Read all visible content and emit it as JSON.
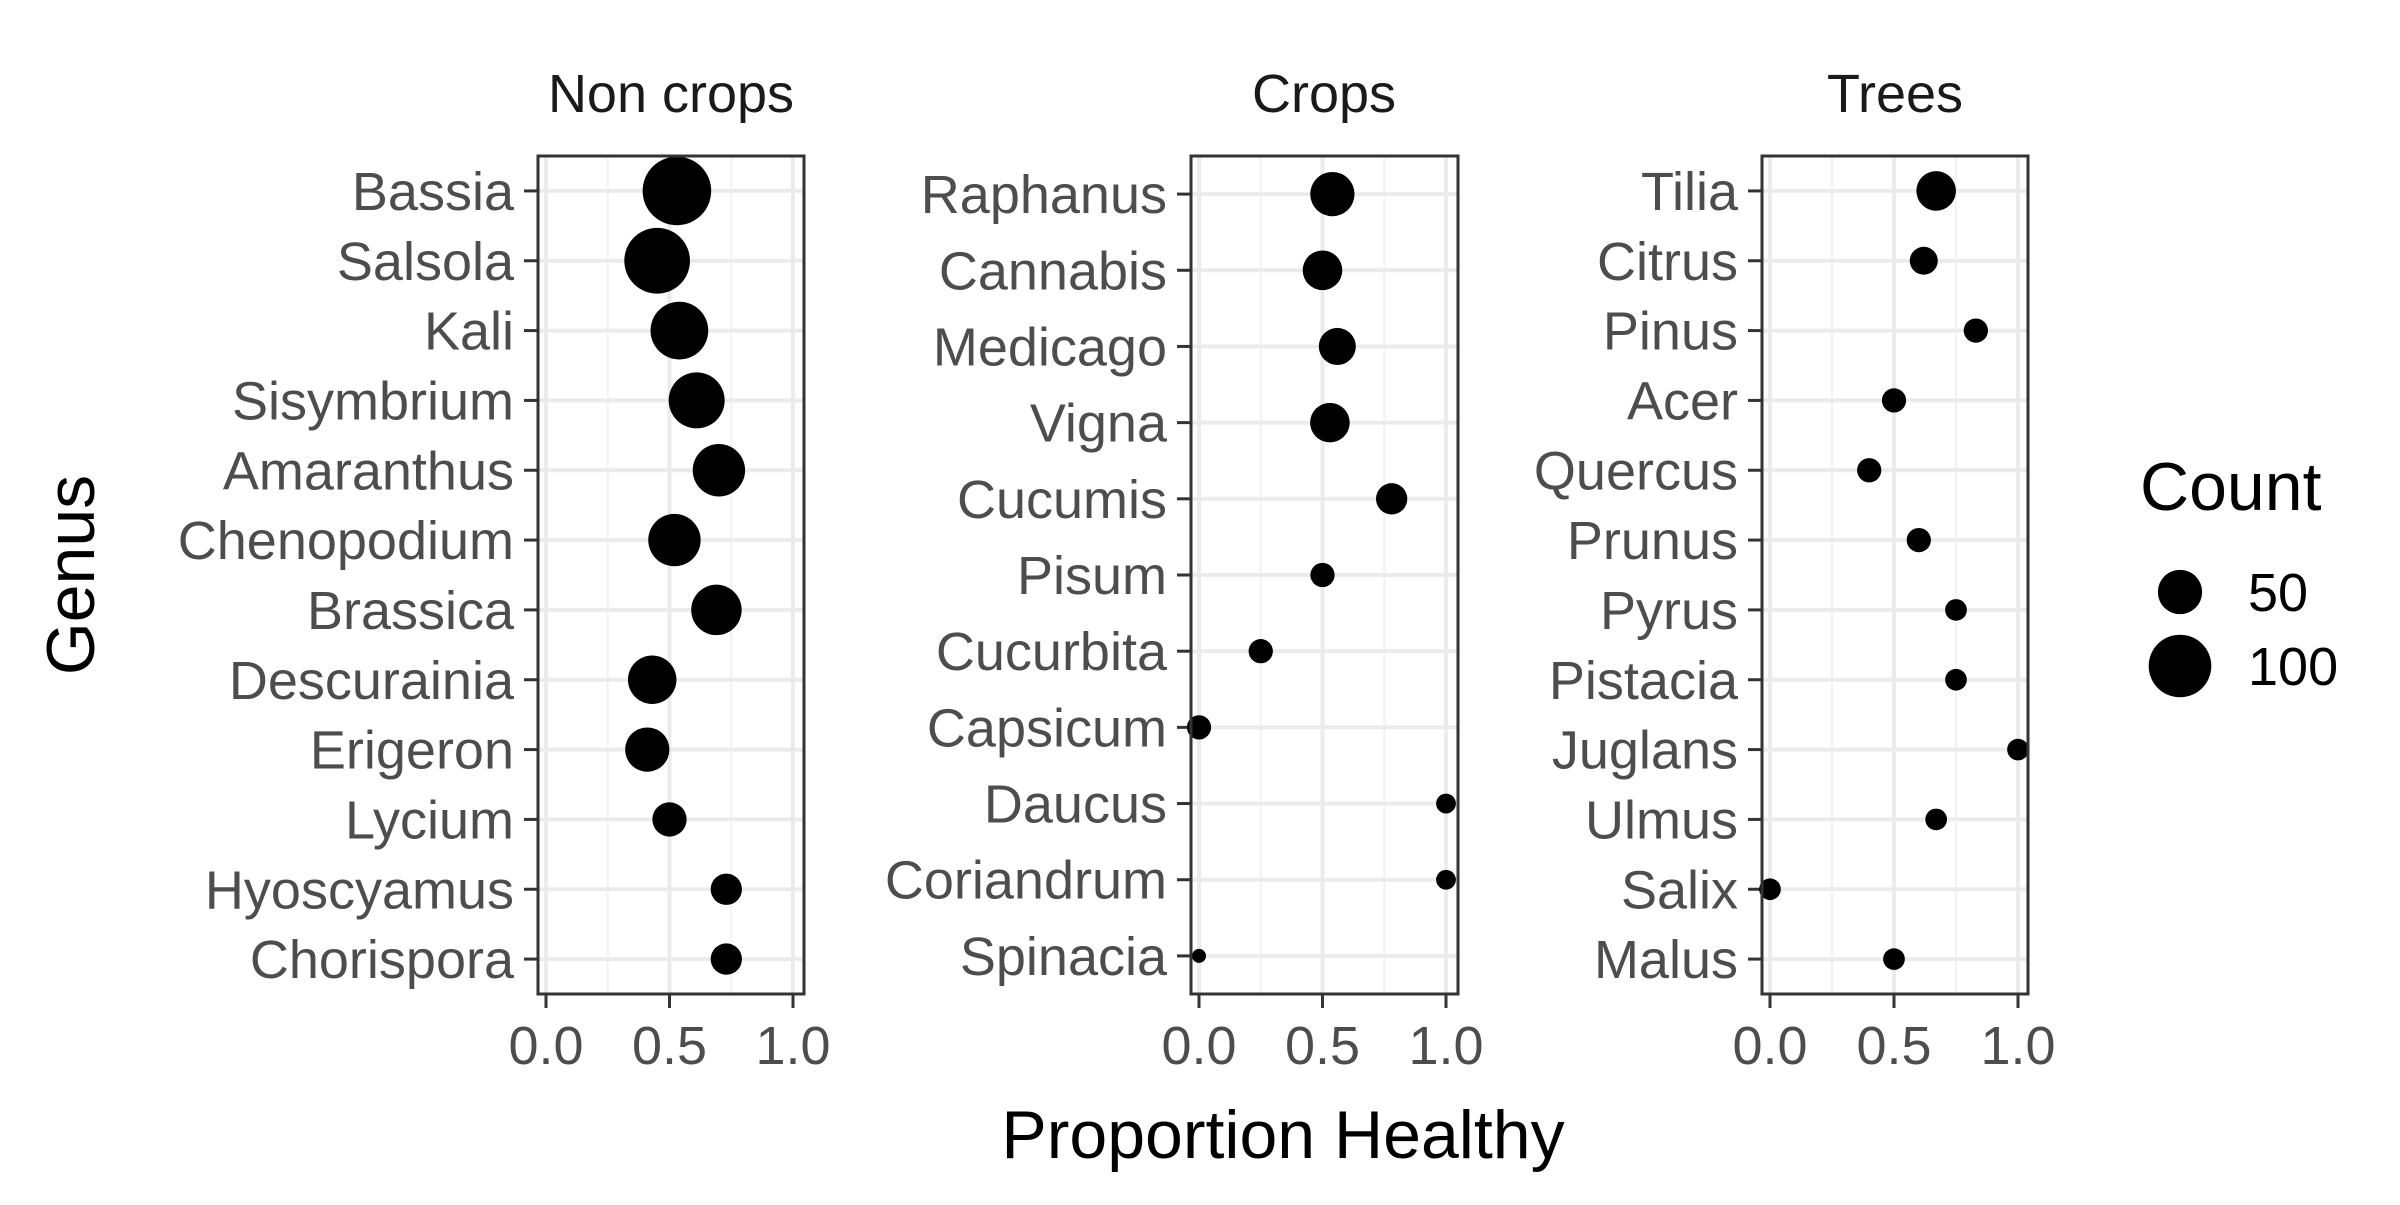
{
  "chart_data": {
    "type": "scatter",
    "xlabel": "Proportion Healthy",
    "ylabel": "Genus",
    "xlim": [
      0,
      1
    ],
    "x_ticks": [
      0.0,
      0.5,
      1.0
    ],
    "x_tick_labels": [
      "0.0",
      "0.5",
      "1.0"
    ],
    "grid": true,
    "legend": {
      "title": "Count",
      "placement": "right",
      "entries": [
        {
          "label": "50",
          "size": 50
        },
        {
          "label": "100",
          "size": 100
        }
      ]
    },
    "facets": [
      {
        "title": "Non crops",
        "points": [
          {
            "genus": "Bassia",
            "x": 0.53,
            "count": 120
          },
          {
            "genus": "Salsola",
            "x": 0.45,
            "count": 110
          },
          {
            "genus": "Kali",
            "x": 0.54,
            "count": 85
          },
          {
            "genus": "Sisymbrium",
            "x": 0.61,
            "count": 80
          },
          {
            "genus": "Amaranthus",
            "x": 0.7,
            "count": 70
          },
          {
            "genus": "Chenopodium",
            "x": 0.52,
            "count": 70
          },
          {
            "genus": "Brassica",
            "x": 0.69,
            "count": 65
          },
          {
            "genus": "Descurainia",
            "x": 0.43,
            "count": 60
          },
          {
            "genus": "Erigeron",
            "x": 0.41,
            "count": 50
          },
          {
            "genus": "Lycium",
            "x": 0.5,
            "count": 30
          },
          {
            "genus": "Hyoscyamus",
            "x": 0.73,
            "count": 25
          },
          {
            "genus": "Chorispora",
            "x": 0.73,
            "count": 25
          }
        ]
      },
      {
        "title": "Crops",
        "points": [
          {
            "genus": "Raphanus",
            "x": 0.54,
            "count": 50
          },
          {
            "genus": "Cannabis",
            "x": 0.5,
            "count": 40
          },
          {
            "genus": "Medicago",
            "x": 0.56,
            "count": 35
          },
          {
            "genus": "Vigna",
            "x": 0.53,
            "count": 40
          },
          {
            "genus": "Cucumis",
            "x": 0.78,
            "count": 25
          },
          {
            "genus": "Pisum",
            "x": 0.5,
            "count": 15
          },
          {
            "genus": "Cucurbita",
            "x": 0.25,
            "count": 15
          },
          {
            "genus": "Capsicum",
            "x": 0.0,
            "count": 15
          },
          {
            "genus": "Daucus",
            "x": 1.0,
            "count": 10
          },
          {
            "genus": "Coriandrum",
            "x": 1.0,
            "count": 10
          },
          {
            "genus": "Spinacia",
            "x": 0.0,
            "count": 5
          }
        ]
      },
      {
        "title": "Trees",
        "points": [
          {
            "genus": "Tilia",
            "x": 0.67,
            "count": 40
          },
          {
            "genus": "Citrus",
            "x": 0.62,
            "count": 20
          },
          {
            "genus": "Pinus",
            "x": 0.83,
            "count": 15
          },
          {
            "genus": "Acer",
            "x": 0.5,
            "count": 15
          },
          {
            "genus": "Quercus",
            "x": 0.4,
            "count": 15
          },
          {
            "genus": "Prunus",
            "x": 0.6,
            "count": 15
          },
          {
            "genus": "Pyrus",
            "x": 0.75,
            "count": 12
          },
          {
            "genus": "Pistacia",
            "x": 0.75,
            "count": 12
          },
          {
            "genus": "Juglans",
            "x": 1.0,
            "count": 12
          },
          {
            "genus": "Ulmus",
            "x": 0.67,
            "count": 12
          },
          {
            "genus": "Salix",
            "x": 0.0,
            "count": 12
          },
          {
            "genus": "Malus",
            "x": 0.5,
            "count": 12
          }
        ]
      }
    ]
  }
}
